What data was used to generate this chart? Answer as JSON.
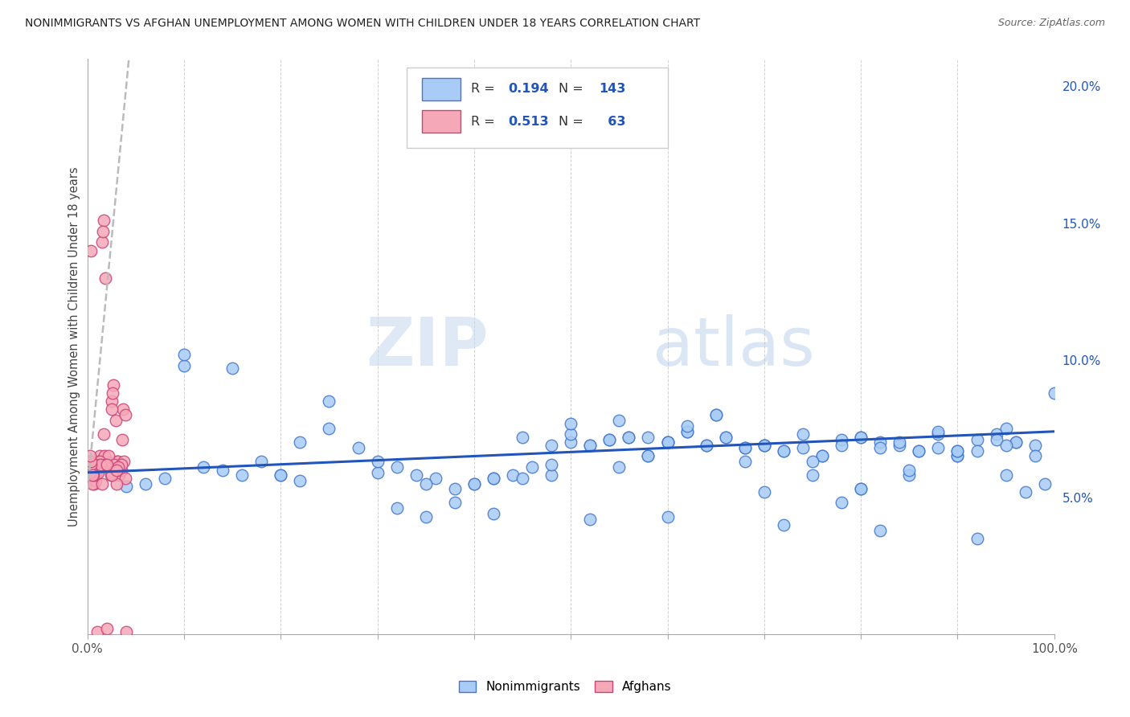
{
  "title": "NONIMMIGRANTS VS AFGHAN UNEMPLOYMENT AMONG WOMEN WITH CHILDREN UNDER 18 YEARS CORRELATION CHART",
  "source": "Source: ZipAtlas.com",
  "ylabel": "Unemployment Among Women with Children Under 18 years",
  "watermark_zip": "ZIP",
  "watermark_atlas": "atlas",
  "blue_R": 0.194,
  "blue_N": 143,
  "pink_R": 0.513,
  "pink_N": 63,
  "blue_face_color": "#a8ccf5",
  "pink_face_color": "#f5a8b8",
  "blue_edge_color": "#4477cc",
  "pink_edge_color": "#cc4477",
  "blue_line_color": "#2255bb",
  "pink_line_color": "#cc3366",
  "background_color": "#ffffff",
  "grid_color": "#cccccc",
  "xlim": [
    0.0,
    1.0
  ],
  "ylim": [
    0.0,
    0.21
  ],
  "xtick_labels_show": [
    "0.0%",
    "",
    "",
    "",
    "",
    "",
    "",
    "",
    "",
    "",
    "100.0%"
  ],
  "yticks_right": [
    0.05,
    0.1,
    0.15,
    0.2
  ],
  "ytick_right_labels": [
    "5.0%",
    "10.0%",
    "15.0%",
    "20.0%"
  ],
  "blue_scatter_x": [
    0.02,
    0.04,
    0.06,
    0.08,
    0.1,
    0.12,
    0.14,
    0.16,
    0.18,
    0.2,
    0.22,
    0.25,
    0.28,
    0.3,
    0.32,
    0.34,
    0.36,
    0.38,
    0.4,
    0.42,
    0.44,
    0.46,
    0.48,
    0.5,
    0.52,
    0.54,
    0.56,
    0.58,
    0.6,
    0.62,
    0.64,
    0.66,
    0.68,
    0.7,
    0.72,
    0.74,
    0.76,
    0.78,
    0.8,
    0.82,
    0.84,
    0.86,
    0.88,
    0.9,
    0.92,
    0.94,
    0.96,
    0.98,
    1.0,
    0.25,
    0.3,
    0.35,
    0.38,
    0.4,
    0.42,
    0.45,
    0.48,
    0.5,
    0.52,
    0.54,
    0.56,
    0.58,
    0.6,
    0.62,
    0.64,
    0.66,
    0.68,
    0.7,
    0.72,
    0.74,
    0.76,
    0.78,
    0.8,
    0.82,
    0.84,
    0.86,
    0.88,
    0.9,
    0.92,
    0.94,
    0.96,
    0.98,
    0.5,
    0.55,
    0.6,
    0.65,
    0.7,
    0.75,
    0.8,
    0.85,
    0.9,
    0.95,
    0.1,
    0.15,
    0.2,
    0.6,
    0.7,
    0.8,
    0.9,
    0.95,
    0.62,
    0.72,
    0.82,
    0.92,
    0.52,
    0.42,
    0.32,
    0.22,
    0.68,
    0.78,
    0.88,
    0.58,
    0.48,
    0.65,
    0.55,
    0.45,
    0.35,
    0.75,
    0.85,
    0.95,
    0.97,
    0.99
  ],
  "blue_scatter_y": [
    0.062,
    0.054,
    0.055,
    0.057,
    0.098,
    0.061,
    0.06,
    0.058,
    0.063,
    0.058,
    0.07,
    0.085,
    0.068,
    0.059,
    0.061,
    0.058,
    0.057,
    0.048,
    0.055,
    0.057,
    0.058,
    0.061,
    0.058,
    0.07,
    0.069,
    0.071,
    0.072,
    0.065,
    0.07,
    0.074,
    0.069,
    0.072,
    0.068,
    0.069,
    0.067,
    0.068,
    0.065,
    0.071,
    0.072,
    0.07,
    0.069,
    0.067,
    0.068,
    0.065,
    0.071,
    0.073,
    0.07,
    0.069,
    0.088,
    0.075,
    0.063,
    0.043,
    0.053,
    0.055,
    0.057,
    0.072,
    0.062,
    0.073,
    0.069,
    0.071,
    0.072,
    0.065,
    0.07,
    0.074,
    0.069,
    0.072,
    0.068,
    0.069,
    0.067,
    0.073,
    0.065,
    0.069,
    0.072,
    0.068,
    0.07,
    0.067,
    0.073,
    0.065,
    0.067,
    0.071,
    0.07,
    0.065,
    0.077,
    0.078,
    0.07,
    0.08,
    0.069,
    0.063,
    0.053,
    0.058,
    0.067,
    0.069,
    0.102,
    0.097,
    0.058,
    0.043,
    0.052,
    0.053,
    0.067,
    0.075,
    0.076,
    0.04,
    0.038,
    0.035,
    0.042,
    0.044,
    0.046,
    0.056,
    0.063,
    0.048,
    0.074,
    0.072,
    0.069,
    0.08,
    0.061,
    0.057,
    0.055,
    0.058,
    0.06,
    0.058,
    0.052,
    0.055
  ],
  "pink_scatter_x": [
    0.005,
    0.007,
    0.009,
    0.011,
    0.013,
    0.015,
    0.017,
    0.019,
    0.021,
    0.023,
    0.025,
    0.027,
    0.029,
    0.031,
    0.033,
    0.035,
    0.037,
    0.039,
    0.008,
    0.012,
    0.018,
    0.025,
    0.031,
    0.038,
    0.005,
    0.009,
    0.015,
    0.022,
    0.028,
    0.035,
    0.007,
    0.013,
    0.019,
    0.026,
    0.032,
    0.039,
    0.011,
    0.017,
    0.024,
    0.03,
    0.01,
    0.02,
    0.04,
    0.015,
    0.025,
    0.006,
    0.016,
    0.026,
    0.036,
    0.008,
    0.014,
    0.02,
    0.03,
    0.004,
    0.002,
    0.003,
    0.004,
    0.003,
    0.004,
    0.005,
    0.004,
    0.003
  ],
  "pink_scatter_y": [
    0.062,
    0.055,
    0.056,
    0.06,
    0.065,
    0.143,
    0.151,
    0.13,
    0.063,
    0.061,
    0.085,
    0.091,
    0.078,
    0.063,
    0.058,
    0.06,
    0.082,
    0.08,
    0.062,
    0.063,
    0.065,
    0.082,
    0.063,
    0.063,
    0.055,
    0.058,
    0.062,
    0.065,
    0.062,
    0.062,
    0.06,
    0.063,
    0.062,
    0.059,
    0.061,
    0.057,
    0.059,
    0.073,
    0.058,
    0.055,
    0.001,
    0.002,
    0.001,
    0.055,
    0.058,
    0.058,
    0.147,
    0.088,
    0.071,
    0.062,
    0.062,
    0.062,
    0.06,
    0.14,
    0.062,
    0.059,
    0.06,
    0.059,
    0.062,
    0.058,
    0.063,
    0.065
  ],
  "blue_trend_x": [
    0.0,
    1.0
  ],
  "blue_trend_y": [
    0.059,
    0.074
  ],
  "pink_trend_x": [
    0.0,
    0.043
  ],
  "pink_trend_y": [
    0.052,
    0.21
  ]
}
